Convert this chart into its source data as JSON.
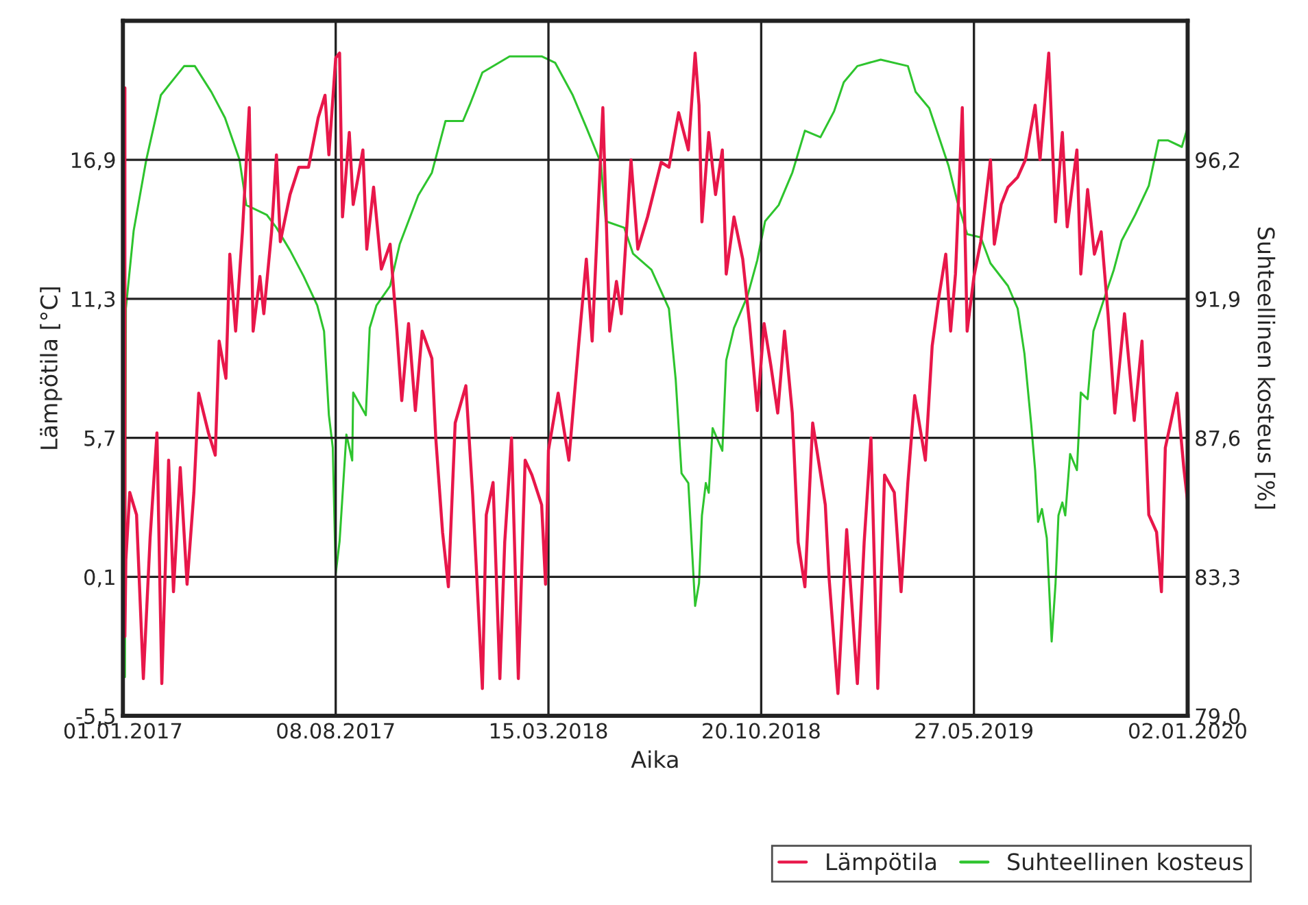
{
  "chart_data": {
    "type": "line",
    "xlabel": "Aika",
    "ylabel": "Lämpötila [°C]",
    "y2label": "Suhteellinen kosteus [%]",
    "xlim": [
      "2017-01-01",
      "2020-01-02"
    ],
    "xticks": [
      {
        "value": "2017-01-01",
        "label": "01.01.2017"
      },
      {
        "value": "2017-08-08",
        "label": "08.08.2017"
      },
      {
        "value": "2018-03-15",
        "label": "15.03.2018"
      },
      {
        "value": "2018-10-20",
        "label": "20.10.2018"
      },
      {
        "value": "2019-05-27",
        "label": "27.05.2019"
      },
      {
        "value": "2020-01-02",
        "label": "02.01.2020"
      }
    ],
    "ylim": [
      -5.5,
      22.5
    ],
    "yticks": [
      {
        "value": -5.5,
        "label": "-5,5"
      },
      {
        "value": 0.1,
        "label": "0,1"
      },
      {
        "value": 5.7,
        "label": "5,7"
      },
      {
        "value": 11.3,
        "label": "11,3"
      },
      {
        "value": 16.9,
        "label": "16,9"
      }
    ],
    "y2lim": [
      79.0,
      100.5
    ],
    "y2ticks": [
      {
        "value": 79.0,
        "label": "79,0"
      },
      {
        "value": 83.3,
        "label": "83,3"
      },
      {
        "value": 87.6,
        "label": "87,6"
      },
      {
        "value": 91.9,
        "label": "91,9"
      },
      {
        "value": 96.2,
        "label": "96,2"
      }
    ],
    "grid": true,
    "legend": "bottom right",
    "marker": "none",
    "line_style": "solid",
    "series": [
      {
        "name": "Lämpötila",
        "color": "#e8174a",
        "axis": "y",
        "x": [
          "2017-01-03",
          "2017-01-03",
          "2017-01-04",
          "2017-01-08",
          "2017-01-15",
          "2017-01-22",
          "2017-01-29",
          "2017-02-05",
          "2017-02-10",
          "2017-02-17",
          "2017-02-22",
          "2017-03-01",
          "2017-03-08",
          "2017-03-15",
          "2017-03-20",
          "2017-03-30",
          "2017-04-06",
          "2017-04-10",
          "2017-04-17",
          "2017-04-21",
          "2017-04-27",
          "2017-05-04",
          "2017-05-11",
          "2017-05-15",
          "2017-05-22",
          "2017-05-26",
          "2017-06-03",
          "2017-06-08",
          "2017-06-12",
          "2017-06-22",
          "2017-07-01",
          "2017-07-11",
          "2017-07-21",
          "2017-07-28",
          "2017-08-01",
          "2017-08-08",
          "2017-08-12",
          "2017-08-15",
          "2017-08-22",
          "2017-08-26",
          "2017-09-05",
          "2017-09-09",
          "2017-09-16",
          "2017-09-24",
          "2017-10-03",
          "2017-10-10",
          "2017-10-15",
          "2017-10-22",
          "2017-10-29",
          "2017-11-05",
          "2017-11-15",
          "2017-11-19",
          "2017-11-26",
          "2017-12-02",
          "2017-12-09",
          "2017-12-20",
          "2017-12-27",
          "2018-01-06",
          "2018-01-10",
          "2018-01-17",
          "2018-01-24",
          "2018-01-29",
          "2018-02-05",
          "2018-02-12",
          "2018-02-19",
          "2018-02-26",
          "2018-03-08",
          "2018-03-12",
          "2018-03-15",
          "2018-03-25",
          "2018-04-05",
          "2018-04-15",
          "2018-04-23",
          "2018-04-29",
          "2018-05-10",
          "2018-05-17",
          "2018-05-24",
          "2018-05-29",
          "2018-06-08",
          "2018-06-15",
          "2018-06-25",
          "2018-07-09",
          "2018-07-17",
          "2018-07-27",
          "2018-08-06",
          "2018-08-13",
          "2018-08-17",
          "2018-08-20",
          "2018-08-27",
          "2018-09-03",
          "2018-09-10",
          "2018-09-14",
          "2018-09-22",
          "2018-10-01",
          "2018-10-08",
          "2018-10-16",
          "2018-10-23",
          "2018-10-30",
          "2018-11-06",
          "2018-11-13",
          "2018-11-21",
          "2018-11-27",
          "2018-12-04",
          "2018-12-12",
          "2018-12-25",
          "2018-12-29",
          "2019-01-07",
          "2019-01-16",
          "2019-01-27",
          "2019-02-03",
          "2019-02-10",
          "2019-02-17",
          "2019-02-24",
          "2019-03-06",
          "2019-03-13",
          "2019-03-20",
          "2019-03-27",
          "2019-04-07",
          "2019-04-14",
          "2019-04-21",
          "2019-04-28",
          "2019-05-03",
          "2019-05-08",
          "2019-05-15",
          "2019-05-20",
          "2019-05-27",
          "2019-06-03",
          "2019-06-13",
          "2019-06-17",
          "2019-06-24",
          "2019-07-01",
          "2019-07-11",
          "2019-07-19",
          "2019-07-29",
          "2019-08-03",
          "2019-08-12",
          "2019-08-19",
          "2019-08-26",
          "2019-08-31",
          "2019-09-10",
          "2019-09-14",
          "2019-09-21",
          "2019-09-28",
          "2019-10-05",
          "2019-10-12",
          "2019-10-19",
          "2019-10-29",
          "2019-11-08",
          "2019-11-16",
          "2019-11-23",
          "2019-12-01",
          "2019-12-06",
          "2019-12-10",
          "2019-12-22",
          "2019-12-29",
          "2020-01-02"
        ],
        "values": [
          19.8,
          -2.3,
          0.8,
          3.5,
          2.6,
          -4.0,
          1.7,
          5.9,
          -4.2,
          4.8,
          -0.5,
          4.5,
          -0.2,
          3.5,
          7.5,
          5.9,
          5.0,
          9.6,
          8.1,
          13.1,
          10.0,
          14.0,
          19.0,
          10.0,
          12.2,
          10.7,
          14.0,
          17.1,
          13.6,
          15.5,
          16.6,
          16.6,
          18.6,
          19.5,
          17.1,
          21.0,
          21.2,
          14.6,
          18.0,
          15.1,
          17.3,
          13.3,
          15.8,
          12.5,
          13.5,
          10.0,
          7.2,
          10.3,
          6.8,
          10.0,
          8.9,
          5.7,
          1.9,
          -0.3,
          6.3,
          7.8,
          3.4,
          -4.4,
          2.6,
          3.9,
          -4.0,
          1.5,
          5.7,
          -4.0,
          4.8,
          4.2,
          3.0,
          -0.2,
          5.2,
          7.5,
          4.8,
          9.4,
          12.9,
          9.6,
          19.0,
          10.0,
          12.0,
          10.7,
          16.9,
          13.3,
          14.6,
          16.8,
          16.6,
          18.8,
          17.3,
          21.2,
          19.1,
          14.4,
          18.0,
          15.5,
          17.3,
          12.3,
          14.6,
          12.9,
          10.3,
          6.8,
          10.3,
          8.6,
          6.7,
          10.0,
          6.7,
          1.5,
          -0.3,
          6.3,
          3.0,
          0.0,
          -4.6,
          2.0,
          -4.2,
          1.5,
          5.7,
          -4.4,
          4.2,
          3.5,
          -0.5,
          3.9,
          7.4,
          4.8,
          9.4,
          11.4,
          13.1,
          10.0,
          12.3,
          19.0,
          10.0,
          12.2,
          13.6,
          16.9,
          13.5,
          15.1,
          15.8,
          16.2,
          16.9,
          19.1,
          16.9,
          21.2,
          14.4,
          18.0,
          14.2,
          17.3,
          12.3,
          15.7,
          13.1,
          14.0,
          10.7,
          6.7,
          10.7,
          6.4,
          9.6,
          2.6,
          1.9,
          -0.5,
          5.3,
          7.5,
          4.5,
          3.1
        ]
      },
      {
        "name": "Suhteellinen kosteus",
        "color": "#2ec42e",
        "axis": "y2",
        "x": [
          "2017-01-03",
          "2017-01-04",
          "2017-01-12",
          "2017-01-25",
          "2017-02-09",
          "2017-03-05",
          "2017-03-16",
          "2017-04-02",
          "2017-04-16",
          "2017-05-01",
          "2017-05-08",
          "2017-05-15",
          "2017-05-29",
          "2017-06-08",
          "2017-06-22",
          "2017-07-06",
          "2017-07-20",
          "2017-07-27",
          "2017-08-01",
          "2017-08-05",
          "2017-08-08",
          "2017-08-12",
          "2017-08-19",
          "2017-08-25",
          "2017-08-26",
          "2017-09-08",
          "2017-09-12",
          "2017-09-19",
          "2017-10-03",
          "2017-10-13",
          "2017-11-01",
          "2017-11-15",
          "2017-11-29",
          "2017-12-17",
          "2017-12-24",
          "2018-01-06",
          "2018-02-03",
          "2018-03-08",
          "2018-03-22",
          "2018-04-09",
          "2018-04-23",
          "2018-05-08",
          "2018-05-13",
          "2018-06-01",
          "2018-06-10",
          "2018-06-29",
          "2018-07-17",
          "2018-07-24",
          "2018-07-30",
          "2018-08-06",
          "2018-08-13",
          "2018-08-17",
          "2018-08-20",
          "2018-08-24",
          "2018-08-27",
          "2018-08-31",
          "2018-09-10",
          "2018-09-14",
          "2018-09-22",
          "2018-10-06",
          "2018-10-16",
          "2018-10-24",
          "2018-11-07",
          "2018-11-21",
          "2018-12-04",
          "2018-12-20",
          "2019-01-03",
          "2019-01-13",
          "2019-01-27",
          "2019-02-20",
          "2019-03-20",
          "2019-03-28",
          "2019-04-11",
          "2019-04-21",
          "2019-05-01",
          "2019-05-10",
          "2019-05-20",
          "2019-06-03",
          "2019-06-13",
          "2019-07-01",
          "2019-07-11",
          "2019-07-18",
          "2019-07-25",
          "2019-07-29",
          "2019-08-01",
          "2019-08-05",
          "2019-08-10",
          "2019-08-15",
          "2019-08-19",
          "2019-08-22",
          "2019-08-26",
          "2019-08-29",
          "2019-09-03",
          "2019-09-10",
          "2019-09-14",
          "2019-09-21",
          "2019-09-27",
          "2019-10-08",
          "2019-10-18",
          "2019-10-26",
          "2019-11-09",
          "2019-11-23",
          "2019-12-03",
          "2019-12-13",
          "2019-12-27",
          "2020-01-02"
        ],
        "values": [
          80.2,
          91.6,
          94.0,
          96.2,
          98.2,
          99.1,
          99.1,
          98.3,
          97.5,
          96.2,
          94.8,
          94.7,
          94.5,
          94.1,
          93.4,
          92.6,
          91.7,
          90.9,
          88.3,
          87.3,
          83.4,
          84.4,
          87.7,
          86.9,
          89.0,
          88.3,
          91.0,
          91.7,
          92.3,
          93.6,
          95.1,
          95.8,
          97.4,
          97.4,
          97.9,
          98.9,
          99.4,
          99.4,
          99.2,
          98.2,
          97.2,
          96.1,
          94.3,
          94.1,
          93.3,
          92.8,
          91.6,
          89.4,
          86.5,
          86.2,
          82.4,
          83.1,
          85.2,
          86.2,
          85.9,
          87.9,
          87.2,
          90.0,
          91.0,
          92.0,
          93.1,
          94.3,
          94.8,
          95.8,
          97.1,
          96.9,
          97.7,
          98.6,
          99.1,
          99.3,
          99.1,
          98.3,
          97.8,
          96.9,
          96.0,
          94.9,
          93.9,
          93.8,
          93.0,
          92.3,
          91.6,
          90.2,
          88.0,
          86.6,
          85.0,
          85.4,
          84.5,
          81.3,
          83.1,
          85.2,
          85.6,
          85.2,
          87.1,
          86.6,
          89.0,
          88.8,
          90.9,
          91.9,
          92.8,
          93.7,
          94.5,
          95.4,
          96.8,
          96.8,
          96.6,
          97.2
        ]
      }
    ]
  }
}
